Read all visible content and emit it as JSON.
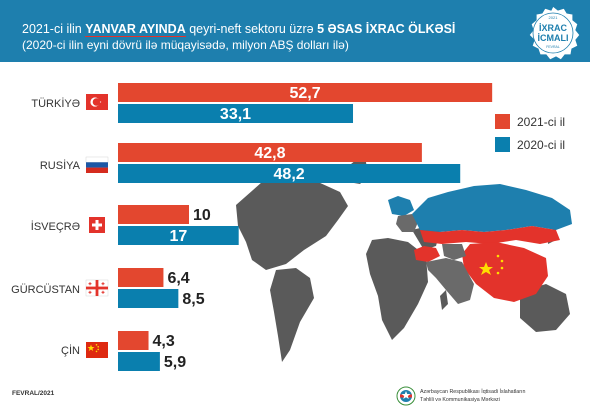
{
  "header": {
    "title_prefix": "2021-ci ilin",
    "title_highlight": "YANVAR AYINDA",
    "title_middle": "qeyri-neft sektoru üzrə",
    "title_bold": "5 ƏSAS İXRAC ÖLKƏSİ",
    "subtitle": "(2020-ci ilin eyni dövrü ilə müqayisədə, milyon ABŞ dolları ilə)"
  },
  "badge": {
    "year": "2021",
    "line1": "İXRAC",
    "line2": "İCMALI",
    "month": "FEVRAL"
  },
  "footer": {
    "left": "FEVRAL/2021",
    "org_line1": "Azərbaycan Respublikası İqtisadi İslahatların",
    "org_line2": "Təhlili və Kommunikasiya Mərkəzi"
  },
  "chart_data": {
    "type": "bar",
    "orientation": "horizontal",
    "categories": [
      "TÜRKİYƏ",
      "RUSİYA",
      "İSVEÇRƏ",
      "GÜRCÜSTAN",
      "ÇİN"
    ],
    "series": [
      {
        "name": "2021-ci il",
        "color": "#e3472f",
        "values": [
          52.7,
          42.8,
          10,
          6.4,
          4.3
        ],
        "labels": [
          "52,7",
          "42,8",
          "10",
          "6,4",
          "4,3"
        ]
      },
      {
        "name": "2020-ci il",
        "color": "#0a7fae",
        "values": [
          33.1,
          48.2,
          17,
          8.5,
          5.9
        ],
        "labels": [
          "33,1",
          "48,2",
          "17",
          "8,5",
          "5,9"
        ]
      }
    ],
    "legend_position": "right",
    "grid": false
  }
}
